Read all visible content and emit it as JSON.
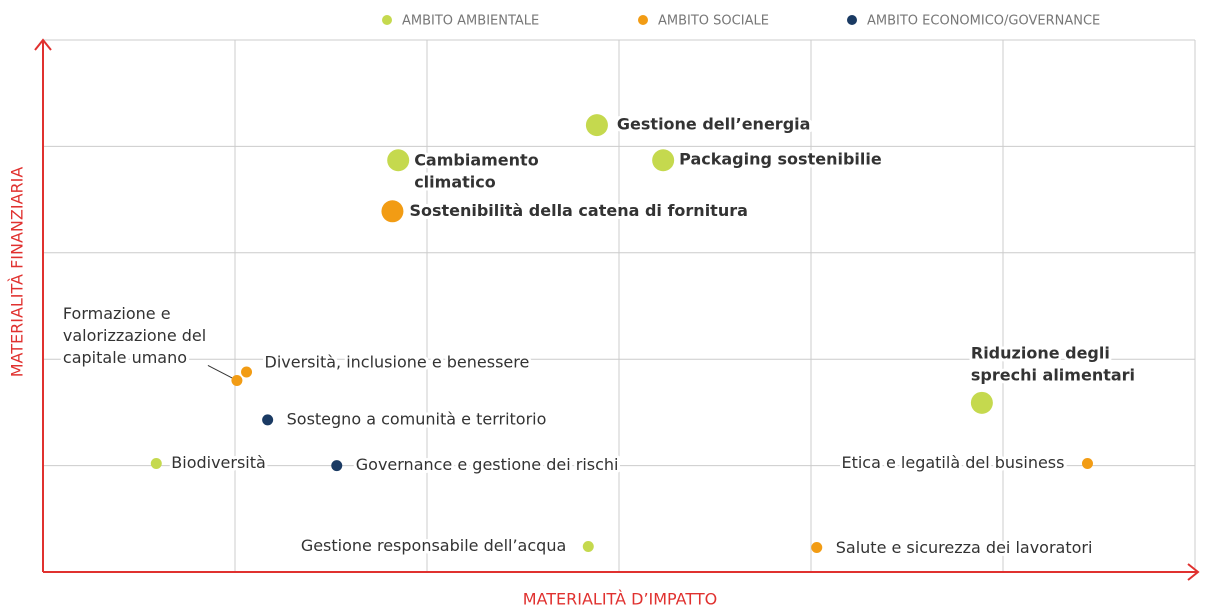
{
  "chart_data": {
    "type": "scatter",
    "x_label": "MATERIALITÀ D’IMPATTO",
    "y_label": "MATERIALITÀ FINANZIARIA",
    "xlim": [
      0,
      6
    ],
    "ylim": [
      0,
      5
    ],
    "xticks": [
      1,
      2,
      3,
      4,
      5
    ],
    "yticks": [
      1,
      2,
      3,
      4
    ],
    "grid": true,
    "legend": "top-right",
    "series": [
      {
        "name": "AMBITO AMBIENTALE",
        "color": "#c5d94e",
        "x": [
          2.885,
          1.85,
          3.23,
          4.89,
          0.59,
          2.84
        ],
        "values": [
          4.2,
          3.87,
          3.87,
          1.59,
          1.02,
          0.24
        ],
        "sizes": [
          2,
          2,
          2,
          2,
          1,
          1
        ],
        "labels": [
          [
            "Gestione dell’energia"
          ],
          [
            "Cambiamento",
            "climatico"
          ],
          [
            "Packaging sostenibilie"
          ],
          [
            "Riduzione degli",
            "sprechi alimentari"
          ],
          [
            "Biodiversità"
          ],
          [
            "Gestione responsabile dell’acqua"
          ]
        ]
      },
      {
        "name": "AMBITO SOCIALE",
        "color": "#f29c14",
        "x": [
          1.82,
          1.01,
          1.06,
          5.44,
          4.03
        ],
        "values": [
          3.39,
          1.8,
          1.88,
          1.02,
          0.23
        ],
        "sizes": [
          2,
          1,
          1,
          1,
          1
        ],
        "labels": [
          [
            "Sostenibilità della catena di fornitura"
          ],
          [
            "Formazione e",
            "valorizzazione del",
            "capitale umano"
          ],
          [
            "Diversità, inclusione e benessere"
          ],
          [
            "Etica e legatilà del business"
          ],
          [
            "Salute e sicurezza dei lavoratori"
          ]
        ]
      },
      {
        "name": "AMBITO ECONOMICO/GOVERNANCE",
        "color": "#1a3a63",
        "x": [
          1.17,
          1.53
        ],
        "values": [
          1.43,
          1.0
        ],
        "sizes": [
          1,
          1
        ],
        "labels": [
          [
            "Sostegno a comunità e territorio"
          ],
          [
            "Governance e gestione dei rischi"
          ]
        ]
      }
    ]
  }
}
